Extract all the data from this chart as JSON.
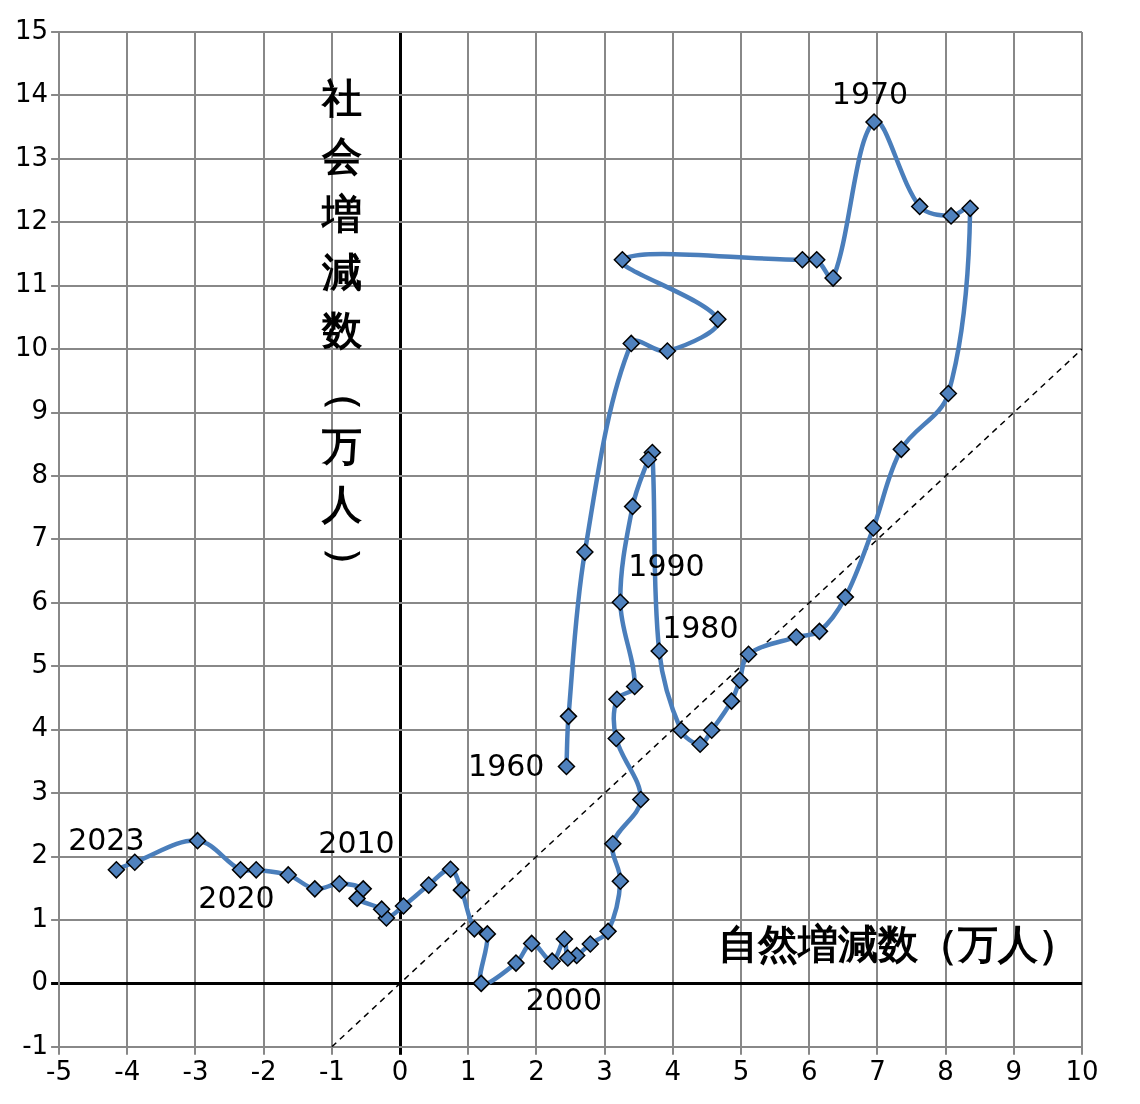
{
  "chart_data": {
    "type": "line",
    "xlabel": "自然増減数（万人）",
    "ylabel": "社会増減数（万人）",
    "xlim": [
      -5,
      10
    ],
    "ylim": [
      -1,
      15
    ],
    "xticks": [
      -5,
      -4,
      -3,
      -2,
      -1,
      0,
      1,
      2,
      3,
      4,
      5,
      6,
      7,
      8,
      9,
      10
    ],
    "yticks": [
      -1,
      0,
      1,
      2,
      3,
      4,
      5,
      6,
      7,
      8,
      9,
      10,
      11,
      12,
      13,
      14,
      15
    ],
    "grid": true,
    "legend": false,
    "series": [
      {
        "color": "#4a7ebb",
        "marker": "diamond",
        "x": [
          2.44,
          2.47,
          2.71,
          3.39,
          3.92,
          4.66,
          3.26,
          5.9,
          6.11,
          6.35,
          6.95,
          7.62,
          8.08,
          8.36,
          8.04,
          7.35,
          6.94,
          6.53,
          6.15,
          5.81,
          5.11,
          4.98,
          4.86,
          4.57,
          4.4,
          4.12,
          3.8,
          3.7,
          3.64,
          3.41,
          3.23,
          3.44,
          3.18,
          3.17,
          3.53,
          3.12,
          3.23,
          3.05,
          2.79,
          2.59,
          2.46,
          2.41,
          2.23,
          1.93,
          1.7,
          1.19,
          1.28,
          1.09,
          0.9,
          0.74,
          0.42,
          0.05,
          -0.2,
          -0.27,
          -0.63,
          -0.54,
          -0.89,
          -1.25,
          -1.64,
          -2.11,
          -2.34,
          -2.97,
          -3.89,
          -4.16
        ],
        "values": [
          3.42,
          4.21,
          6.8,
          10.09,
          9.97,
          10.47,
          11.41,
          11.41,
          11.41,
          11.12,
          13.58,
          12.25,
          12.1,
          12.22,
          9.3,
          8.42,
          7.18,
          6.09,
          5.55,
          5.46,
          5.19,
          4.78,
          4.45,
          3.99,
          3.77,
          3.99,
          5.24,
          8.37,
          8.26,
          7.52,
          6.01,
          4.68,
          4.48,
          3.86,
          2.9,
          2.2,
          1.61,
          0.82,
          0.62,
          0.44,
          0.4,
          0.7,
          0.35,
          0.63,
          0.32,
          0,
          0.78,
          0.86,
          1.47,
          1.8,
          1.55,
          1.22,
          1.03,
          1.17,
          1.34,
          1.49,
          1.57,
          1.49,
          1.71,
          1.79,
          1.79,
          2.25,
          1.91,
          1.79
        ]
      },
      {
        "type": "line",
        "color": "#000000",
        "marker": "none",
        "line_style": "dashed",
        "x": [
          -1,
          10
        ],
        "values": [
          -1,
          10
        ]
      }
    ],
    "annotations": [
      {
        "text": "1960",
        "x": 2.44,
        "y": 3.42
      },
      {
        "text": "1970",
        "x": 6.95,
        "y": 13.58
      },
      {
        "text": "1980",
        "x": 5.11,
        "y": 5.19
      },
      {
        "text": "1990",
        "x": 3.23,
        "y": 6.01
      },
      {
        "text": "2000",
        "x": 2.46,
        "y": 0.4
      },
      {
        "text": "2010",
        "x": 0.42,
        "y": 1.55
      },
      {
        "text": "2020",
        "x": -2.34,
        "y": 1.79
      },
      {
        "text": "2023",
        "x": -4.16,
        "y": 1.79
      }
    ]
  }
}
